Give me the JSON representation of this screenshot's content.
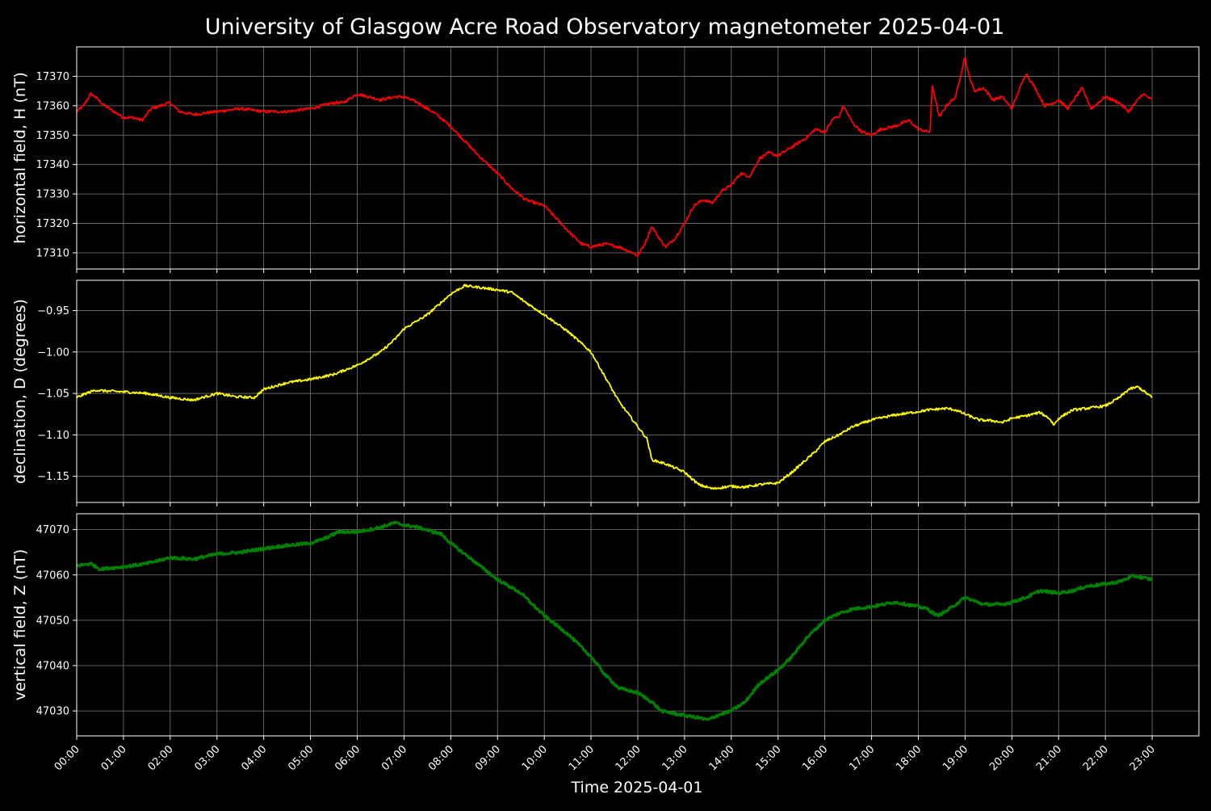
{
  "title": "University of Glasgow Acre Road Observatory magnetometer 2025-04-01",
  "xlabel": "Time 2025-04-01",
  "x_ticks": [
    "00:00",
    "01:00",
    "02:00",
    "03:00",
    "04:00",
    "05:00",
    "06:00",
    "07:00",
    "08:00",
    "09:00",
    "10:00",
    "11:00",
    "12:00",
    "13:00",
    "14:00",
    "15:00",
    "16:00",
    "17:00",
    "18:00",
    "19:00",
    "20:00",
    "21:00",
    "22:00",
    "23:00"
  ],
  "chart_data": [
    {
      "type": "line",
      "ylabel": "horizontal field, H (nT)",
      "color": "#ff0000",
      "xlim": [
        0,
        24
      ],
      "ylim": [
        17304.5,
        17380.0
      ],
      "y_ticks": [
        17310,
        17320,
        17330,
        17340,
        17350,
        17360,
        17370
      ],
      "y_tick_labels": [
        "17310",
        "17320",
        "17330",
        "17340",
        "17350",
        "17360",
        "17370"
      ],
      "noise": 0.5,
      "x": [
        0,
        0.15,
        0.3,
        0.4,
        0.6,
        0.8,
        1.0,
        1.2,
        1.4,
        1.6,
        1.8,
        2.0,
        2.2,
        2.5,
        3.0,
        3.5,
        4.0,
        4.5,
        5.0,
        5.5,
        5.7,
        6.0,
        6.5,
        6.8,
        7.0,
        7.3,
        7.7,
        8.0,
        8.3,
        8.6,
        9.0,
        9.3,
        9.6,
        10.0,
        10.3,
        10.6,
        10.8,
        11.0,
        11.3,
        11.6,
        11.9,
        12.0,
        12.15,
        12.3,
        12.5,
        12.6,
        12.8,
        13.0,
        13.2,
        13.4,
        13.6,
        13.8,
        14.0,
        14.2,
        14.4,
        14.6,
        14.8,
        15.0,
        15.2,
        15.4,
        15.6,
        15.8,
        16.0,
        16.2,
        16.3,
        16.4,
        16.6,
        16.8,
        17.0,
        17.2,
        17.5,
        17.8,
        18.0,
        18.25,
        18.3,
        18.45,
        18.6,
        18.8,
        19.0,
        19.05,
        19.2,
        19.4,
        19.6,
        19.8,
        20.0,
        20.2,
        20.3,
        20.5,
        20.7,
        20.9,
        21.0,
        21.2,
        21.5,
        21.7,
        22.0,
        22.3,
        22.5,
        22.8,
        23.0
      ],
      "values": [
        17358,
        17360,
        17364,
        17363,
        17360,
        17358,
        17356,
        17356,
        17355,
        17359,
        17360,
        17361,
        17358,
        17357,
        17358,
        17359,
        17358,
        17358,
        17359,
        17361,
        17361,
        17364,
        17362,
        17363,
        17363,
        17361,
        17357,
        17353,
        17348,
        17343,
        17337,
        17332,
        17328,
        17326,
        17321,
        17316,
        17313,
        17312,
        17313,
        17312,
        17310,
        17309,
        17313,
        17319,
        17314,
        17312,
        17315,
        17320,
        17326,
        17328,
        17327,
        17331,
        17333,
        17337,
        17336,
        17342,
        17344,
        17343,
        17345,
        17347,
        17349,
        17352,
        17351,
        17356,
        17356,
        17360,
        17354,
        17351,
        17350,
        17352,
        17353,
        17355,
        17352,
        17351,
        17367,
        17356,
        17360,
        17363,
        17377,
        17372,
        17365,
        17366,
        17362,
        17363,
        17359,
        17367,
        17371,
        17366,
        17360,
        17361,
        17362,
        17359,
        17366,
        17359,
        17363,
        17361,
        17358,
        17364,
        17362
      ]
    },
    {
      "type": "line",
      "ylabel": "declination, D (degrees)",
      "color": "#ffff00",
      "xlim": [
        0,
        24
      ],
      "ylim": [
        -1.1815,
        -0.9135
      ],
      "y_ticks": [
        -1.15,
        -1.1,
        -1.05,
        -1.0,
        -0.95
      ],
      "y_tick_labels": [
        "−1.15",
        "−1.10",
        "−1.05",
        "−1.00",
        "−0.95"
      ],
      "noise": 0.0015,
      "x": [
        0,
        0.2,
        0.4,
        0.6,
        1.0,
        1.5,
        2.0,
        2.5,
        3.0,
        3.4,
        3.8,
        4.0,
        4.5,
        5.0,
        5.5,
        6.0,
        6.5,
        6.8,
        7.0,
        7.5,
        7.8,
        8.0,
        8.3,
        8.6,
        9.0,
        9.3,
        9.6,
        10.0,
        10.5,
        11.0,
        11.3,
        11.6,
        11.8,
        12.0,
        12.2,
        12.3,
        12.6,
        13.0,
        13.3,
        13.6,
        14.0,
        14.3,
        14.6,
        15.0,
        15.3,
        15.6,
        15.8,
        16.0,
        16.3,
        16.6,
        17.0,
        17.5,
        18.0,
        18.2,
        18.6,
        18.8,
        19.0,
        19.3,
        19.6,
        19.8,
        20.0,
        20.3,
        20.6,
        20.8,
        20.9,
        21.0,
        21.3,
        21.6,
        22.0,
        22.3,
        22.5,
        22.7,
        23.0
      ],
      "values": [
        -1.055,
        -1.05,
        -1.046,
        -1.047,
        -1.048,
        -1.05,
        -1.055,
        -1.058,
        -1.05,
        -1.054,
        -1.055,
        -1.045,
        -1.037,
        -1.033,
        -1.027,
        -1.016,
        -1.0,
        -0.985,
        -0.972,
        -0.955,
        -0.94,
        -0.93,
        -0.92,
        -0.922,
        -0.925,
        -0.928,
        -0.94,
        -0.955,
        -0.975,
        -1.0,
        -1.03,
        -1.06,
        -1.075,
        -1.09,
        -1.105,
        -1.13,
        -1.135,
        -1.145,
        -1.16,
        -1.165,
        -1.162,
        -1.163,
        -1.16,
        -1.158,
        -1.145,
        -1.13,
        -1.12,
        -1.108,
        -1.1,
        -1.09,
        -1.082,
        -1.076,
        -1.072,
        -1.07,
        -1.068,
        -1.07,
        -1.075,
        -1.082,
        -1.083,
        -1.085,
        -1.08,
        -1.077,
        -1.073,
        -1.08,
        -1.088,
        -1.08,
        -1.07,
        -1.068,
        -1.065,
        -1.055,
        -1.045,
        -1.042,
        -1.055
      ]
    },
    {
      "type": "line",
      "ylabel": "vertical field, Z (nT)",
      "color": "#008000",
      "xlim": [
        0,
        24
      ],
      "ylim": [
        47024.5,
        47073.5
      ],
      "y_ticks": [
        47030,
        47040,
        47050,
        47060,
        47070
      ],
      "y_tick_labels": [
        "47030",
        "47040",
        "47050",
        "47060",
        "47070"
      ],
      "noise": 0.3,
      "x": [
        0,
        0.3,
        0.5,
        1.0,
        1.5,
        2.0,
        2.5,
        3.0,
        3.5,
        4.0,
        4.5,
        5.0,
        5.3,
        5.6,
        6.0,
        6.5,
        6.8,
        7.0,
        7.3,
        7.8,
        8.0,
        8.5,
        9.0,
        9.5,
        10.0,
        10.5,
        11.0,
        11.3,
        11.6,
        12.0,
        12.3,
        12.5,
        13.0,
        13.3,
        13.5,
        13.7,
        14.0,
        14.3,
        14.6,
        15.0,
        15.3,
        15.6,
        16.0,
        16.3,
        16.6,
        17.0,
        17.5,
        18.0,
        18.2,
        18.4,
        18.6,
        18.8,
        19.0,
        19.4,
        19.8,
        20.0,
        20.3,
        20.6,
        21.0,
        21.3,
        21.6,
        22.0,
        22.3,
        22.6,
        23.0
      ],
      "values": [
        47062,
        47062.5,
        47061.3,
        47061.8,
        47062.5,
        47063.8,
        47063.5,
        47064.6,
        47065,
        47065.8,
        47066.5,
        47067,
        47068,
        47069.5,
        47069.5,
        47070.5,
        47071.5,
        47071,
        47070.5,
        47069,
        47067,
        47063,
        47059,
        47056,
        47051,
        47047,
        47042,
        47038,
        47035,
        47034,
        47032,
        47030,
        47029,
        47028.5,
        47028,
        47029,
        47030,
        47032,
        47036,
        47039,
        47042,
        47046,
        47050,
        47051.5,
        47052.5,
        47053,
        47054,
        47053,
        47052.5,
        47051,
        47052,
        47053.5,
        47055,
        47053.5,
        47053.5,
        47054,
        47055,
        47056.5,
        47056,
        47056.5,
        47057.5,
        47058,
        47058.5,
        47059.8,
        47059
      ]
    }
  ]
}
